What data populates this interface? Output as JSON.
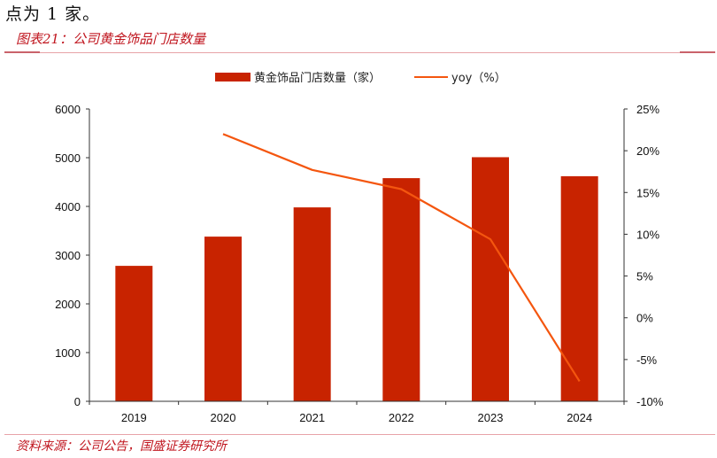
{
  "intro_text": "点为 1 家。",
  "figure_title": "图表21：公司黄金饰品门店数量",
  "source_note": "资料来源：公司公告，国盛证券研究所",
  "legend": {
    "bar_label": "黄金饰品门店数量（家）",
    "line_label": "yoy（%）"
  },
  "colors": {
    "bar": "#c82300",
    "line": "#f4560f",
    "accent": "#c0161f"
  },
  "chart_data": {
    "type": "bar+line",
    "title": "公司黄金饰品门店数量",
    "categories": [
      "2019",
      "2020",
      "2021",
      "2022",
      "2023",
      "2024"
    ],
    "series": [
      {
        "name": "黄金饰品门店数量（家）",
        "type": "bar",
        "axis": "left",
        "values": [
          2780,
          3380,
          3980,
          4580,
          5010,
          4620
        ]
      },
      {
        "name": "yoy（%）",
        "type": "line",
        "axis": "right",
        "values": [
          null,
          22.0,
          17.7,
          15.4,
          9.4,
          -7.6
        ]
      }
    ],
    "left_axis": {
      "ylim": [
        0,
        6000
      ],
      "ticks": [
        "0",
        "1000",
        "2000",
        "3000",
        "4000",
        "5000",
        "6000"
      ]
    },
    "right_axis": {
      "ylim": [
        -10,
        25
      ],
      "ticks": [
        "-10%",
        "-5%",
        "0%",
        "5%",
        "10%",
        "15%",
        "20%",
        "25%"
      ]
    },
    "xlabel": "",
    "ylabel": "",
    "grid": false,
    "legend_position": "top"
  }
}
